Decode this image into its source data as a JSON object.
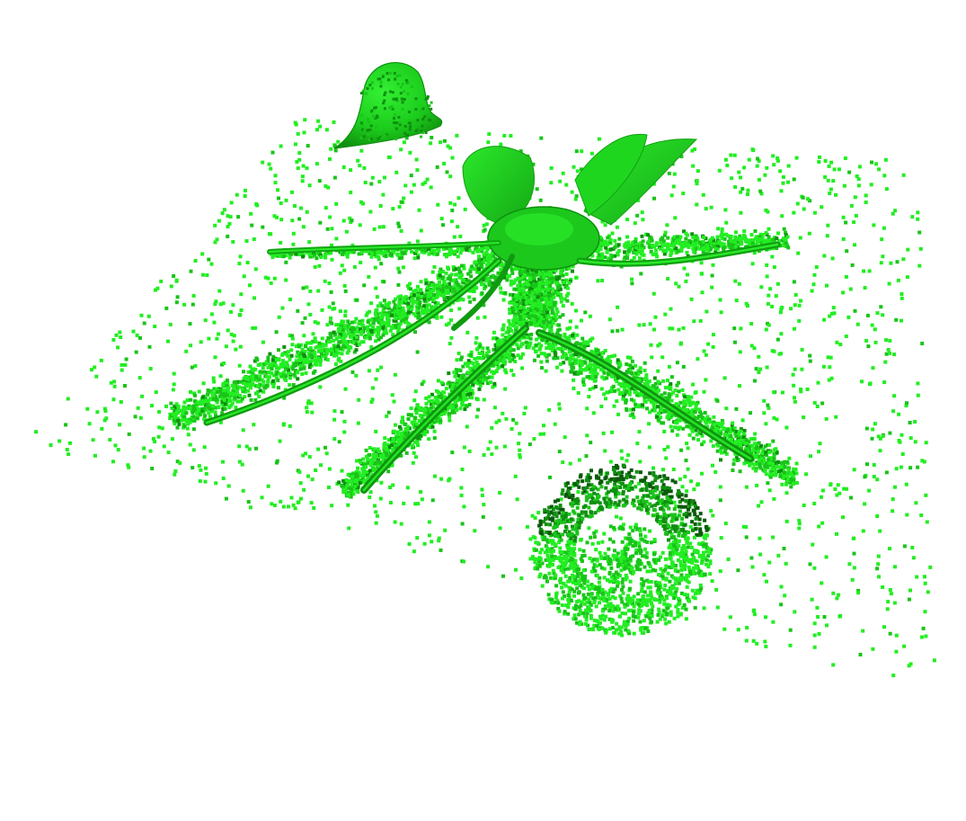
{
  "scene": {
    "background": "#ffffff",
    "palette": {
      "bright": "#22ee22",
      "mid": "#19c419",
      "dark": "#0f8f0f",
      "deep": "#0a5a0a"
    },
    "objects": [
      "ground-plane-point-cloud",
      "starfish-shaped-plant",
      "bell-shaped-object",
      "ring-shaped-object"
    ]
  }
}
